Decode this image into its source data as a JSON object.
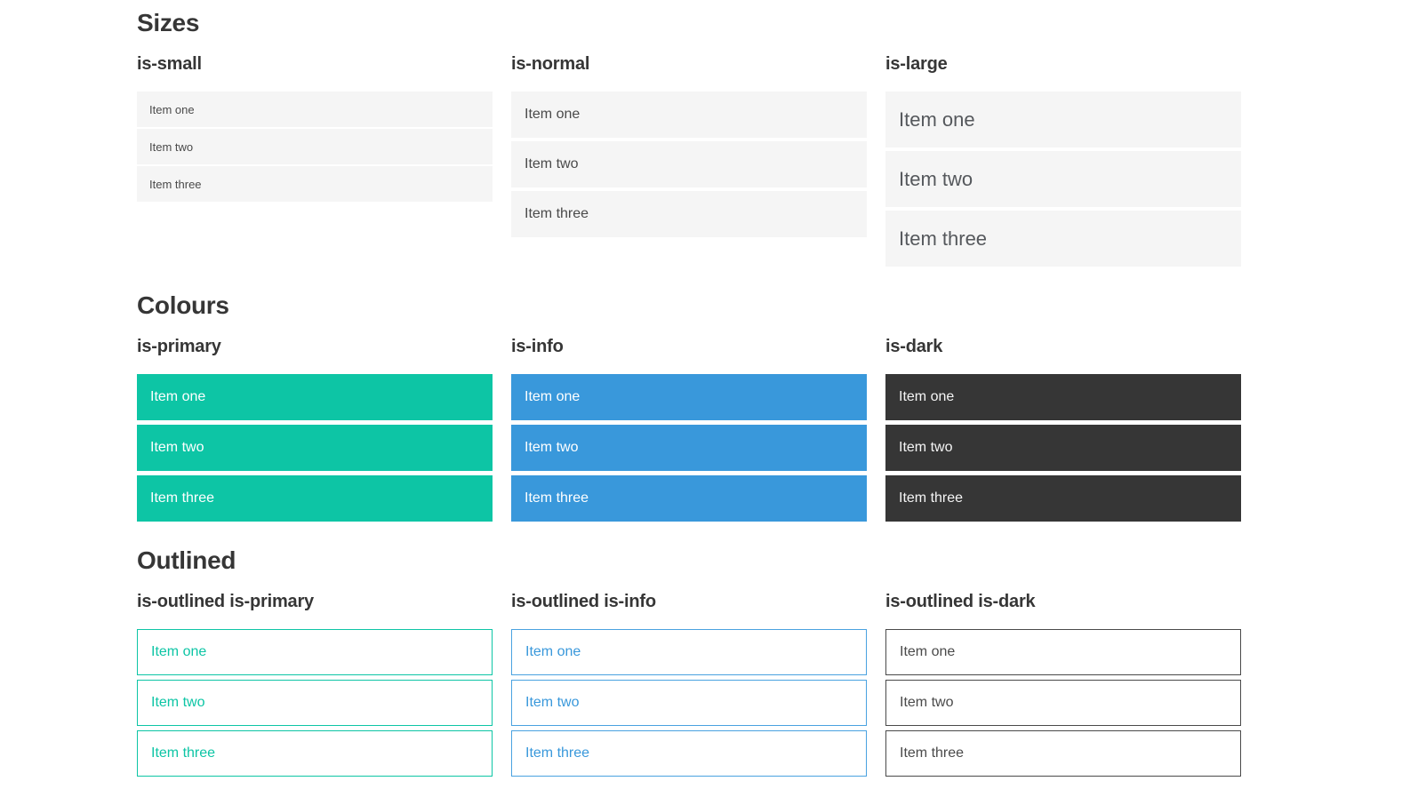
{
  "sections": [
    {
      "title": "Sizes",
      "groups": [
        {
          "label": "is-small",
          "items": [
            "Item one",
            "Item two",
            "Item three"
          ]
        },
        {
          "label": "is-normal",
          "items": [
            "Item one",
            "Item two",
            "Item three"
          ]
        },
        {
          "label": "is-large",
          "items": [
            "Item one",
            "Item two",
            "Item three"
          ]
        }
      ]
    },
    {
      "title": "Colours",
      "groups": [
        {
          "label": "is-primary",
          "items": [
            "Item one",
            "Item two",
            "Item three"
          ]
        },
        {
          "label": "is-info",
          "items": [
            "Item one",
            "Item two",
            "Item three"
          ]
        },
        {
          "label": "is-dark",
          "items": [
            "Item one",
            "Item two",
            "Item three"
          ]
        }
      ]
    },
    {
      "title": "Outlined",
      "groups": [
        {
          "label": "is-outlined is-primary",
          "items": [
            "Item one",
            "Item two",
            "Item three"
          ]
        },
        {
          "label": "is-outlined is-info",
          "items": [
            "Item one",
            "Item two",
            "Item three"
          ]
        },
        {
          "label": "is-outlined is-dark",
          "items": [
            "Item one",
            "Item two",
            "Item three"
          ]
        }
      ]
    }
  ],
  "colors": {
    "primary": "#0dc5a5",
    "info": "#3998db",
    "dark": "#363636",
    "item_background": "#f5f5f5",
    "item_text": "#4a4a4a",
    "white_text": "#ffffff",
    "heading_text": "#363636"
  }
}
